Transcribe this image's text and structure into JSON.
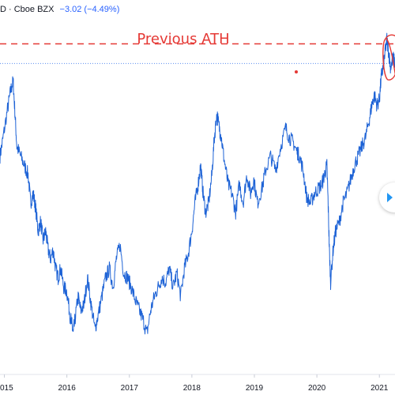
{
  "header": {
    "symbol_suffix": "D · Cboe BZX",
    "change": "−3.02 (−4.49%)"
  },
  "chart_data": {
    "type": "line",
    "title": "",
    "xlabel": "",
    "ylabel": "",
    "x_ticks": [
      "2015",
      "2016",
      "2017",
      "2018",
      "2019",
      "2020",
      "2021"
    ],
    "xlim": [
      2014.93,
      2021.25
    ],
    "ylim": [
      -8,
      68
    ],
    "grid": false,
    "color": "#1e63d6",
    "annotation": {
      "text": "Previous ATH",
      "color": "#e53935",
      "level": 62,
      "marker": {
        "x": 2019.67,
        "y": 56
      }
    },
    "last_price_level": 57.8,
    "series": [
      {
        "values": [
          [
            2014.93,
            38
          ],
          [
            2014.98,
            42
          ],
          [
            2015.05,
            48
          ],
          [
            2015.1,
            52
          ],
          [
            2015.14,
            54
          ],
          [
            2015.17,
            47
          ],
          [
            2015.2,
            40
          ],
          [
            2015.26,
            38
          ],
          [
            2015.32,
            36
          ],
          [
            2015.38,
            34
          ],
          [
            2015.42,
            28
          ],
          [
            2015.46,
            30
          ],
          [
            2015.5,
            27
          ],
          [
            2015.54,
            22
          ],
          [
            2015.58,
            24
          ],
          [
            2015.62,
            20
          ],
          [
            2015.66,
            22
          ],
          [
            2015.7,
            18
          ],
          [
            2015.74,
            16
          ],
          [
            2015.78,
            18
          ],
          [
            2015.82,
            14
          ],
          [
            2015.86,
            12
          ],
          [
            2015.9,
            14
          ],
          [
            2015.95,
            10
          ],
          [
            2016.0,
            9
          ],
          [
            2016.05,
            4
          ],
          [
            2016.08,
            2
          ],
          [
            2016.1,
            0
          ],
          [
            2016.13,
            3
          ],
          [
            2016.18,
            8
          ],
          [
            2016.22,
            5
          ],
          [
            2016.27,
            6
          ],
          [
            2016.33,
            12
          ],
          [
            2016.39,
            6
          ],
          [
            2016.45,
            1
          ],
          [
            2016.5,
            4
          ],
          [
            2016.56,
            8
          ],
          [
            2016.62,
            12
          ],
          [
            2016.68,
            14
          ],
          [
            2016.74,
            10
          ],
          [
            2016.79,
            16
          ],
          [
            2016.85,
            19
          ],
          [
            2016.91,
            13
          ],
          [
            2016.97,
            12
          ],
          [
            2017.03,
            10
          ],
          [
            2017.1,
            7
          ],
          [
            2017.16,
            5
          ],
          [
            2017.22,
            3
          ],
          [
            2017.28,
            0
          ],
          [
            2017.34,
            5
          ],
          [
            2017.4,
            8
          ],
          [
            2017.46,
            10
          ],
          [
            2017.52,
            12
          ],
          [
            2017.58,
            11
          ],
          [
            2017.64,
            14
          ],
          [
            2017.7,
            10
          ],
          [
            2017.76,
            13
          ],
          [
            2017.82,
            8
          ],
          [
            2017.88,
            14
          ],
          [
            2017.94,
            17
          ],
          [
            2018.0,
            22
          ],
          [
            2018.05,
            28
          ],
          [
            2018.1,
            32
          ],
          [
            2018.14,
            36
          ],
          [
            2018.18,
            30
          ],
          [
            2018.22,
            26
          ],
          [
            2018.27,
            28
          ],
          [
            2018.32,
            34
          ],
          [
            2018.36,
            42
          ],
          [
            2018.4,
            47
          ],
          [
            2018.44,
            44
          ],
          [
            2018.47,
            42
          ],
          [
            2018.52,
            37
          ],
          [
            2018.58,
            32
          ],
          [
            2018.64,
            30
          ],
          [
            2018.7,
            26
          ],
          [
            2018.76,
            32
          ],
          [
            2018.82,
            28
          ],
          [
            2018.88,
            34
          ],
          [
            2018.94,
            30
          ],
          [
            2018.99,
            33
          ],
          [
            2019.05,
            28
          ],
          [
            2019.12,
            31
          ],
          [
            2019.18,
            35
          ],
          [
            2019.26,
            38
          ],
          [
            2019.34,
            35
          ],
          [
            2019.42,
            40
          ],
          [
            2019.5,
            44
          ],
          [
            2019.56,
            42
          ],
          [
            2019.62,
            41
          ],
          [
            2019.68,
            39
          ],
          [
            2019.72,
            38
          ],
          [
            2019.78,
            35
          ],
          [
            2019.84,
            29
          ],
          [
            2019.9,
            28
          ],
          [
            2019.96,
            30
          ],
          [
            2020.02,
            31
          ],
          [
            2020.08,
            32
          ],
          [
            2020.12,
            34
          ],
          [
            2020.16,
            36
          ],
          [
            2020.18,
            28
          ],
          [
            2020.2,
            18
          ],
          [
            2020.22,
            11
          ],
          [
            2020.26,
            18
          ],
          [
            2020.3,
            22
          ],
          [
            2020.36,
            24
          ],
          [
            2020.42,
            28
          ],
          [
            2020.48,
            30
          ],
          [
            2020.54,
            33
          ],
          [
            2020.6,
            36
          ],
          [
            2020.66,
            38
          ],
          [
            2020.72,
            40
          ],
          [
            2020.78,
            42
          ],
          [
            2020.84,
            46
          ],
          [
            2020.88,
            49
          ],
          [
            2020.92,
            51
          ],
          [
            2020.96,
            49
          ],
          [
            2021.0,
            50
          ],
          [
            2021.03,
            55
          ],
          [
            2021.06,
            57
          ],
          [
            2021.09,
            60
          ],
          [
            2021.12,
            63
          ],
          [
            2021.15,
            60
          ],
          [
            2021.18,
            57
          ],
          [
            2021.22,
            59
          ],
          [
            2021.25,
            57.8
          ]
        ]
      }
    ]
  }
}
